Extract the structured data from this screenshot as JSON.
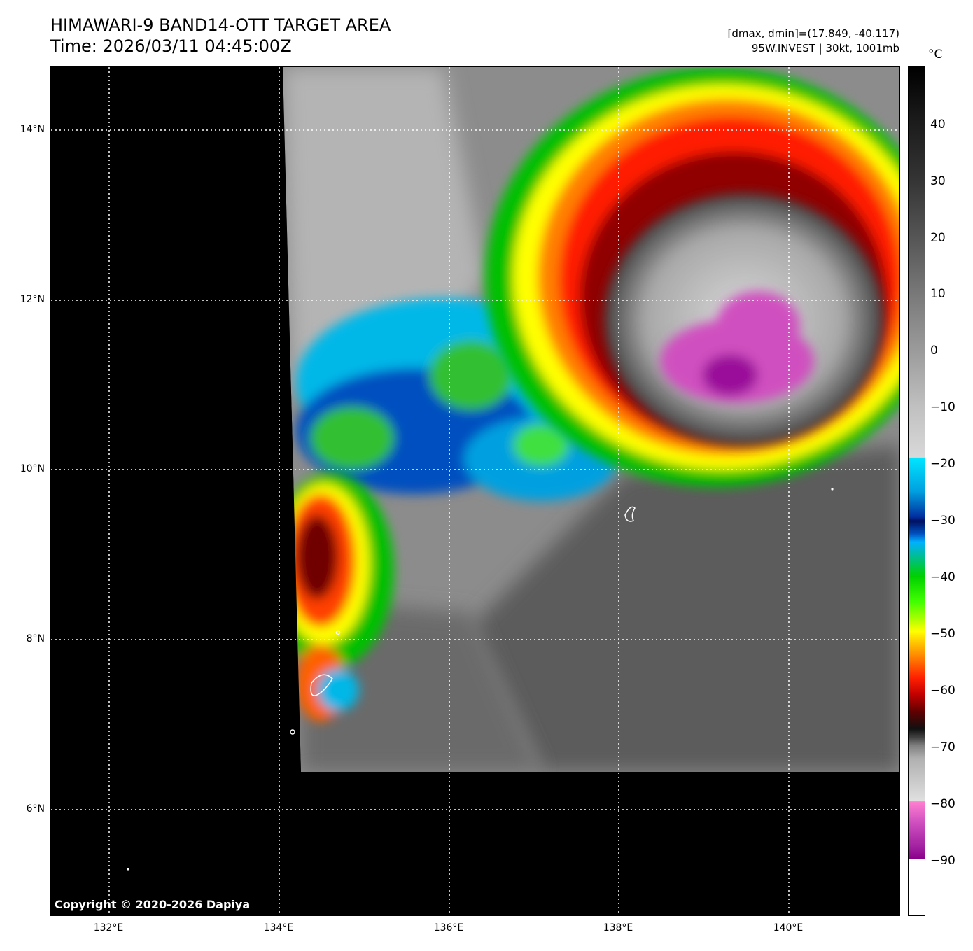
{
  "title": {
    "line1": "HIMAWARI-9 BAND14-OTT TARGET AREA",
    "line2": "Time: 2026/03/11 04:45:00Z"
  },
  "info": {
    "line1": "[dmax, dmin]=(17.849, -40.117)",
    "line2": "95W.INVEST | 30kt, 1001mb"
  },
  "map": {
    "x_ticks": [
      "132°E",
      "134°E",
      "136°E",
      "138°E",
      "140°E"
    ],
    "y_ticks": [
      "14°N",
      "12°N",
      "10°N",
      "8°N",
      "6°N"
    ],
    "copyright": "Copyright © 2020-2026 Dapiya"
  },
  "colorbar": {
    "unit": "°C",
    "ticks": [
      "40",
      "30",
      "20",
      "10",
      "0",
      "−10",
      "−20",
      "−30",
      "−40",
      "−50",
      "−60",
      "−70",
      "−80",
      "−90"
    ],
    "colors": {
      "gray_warm": "#1a1a1a",
      "cyan": "#00e5ff",
      "blue": "#0030a0",
      "green": "#00d000",
      "yellow": "#ffff00",
      "red": "#ff2000",
      "magenta": "#d050c0"
    }
  }
}
